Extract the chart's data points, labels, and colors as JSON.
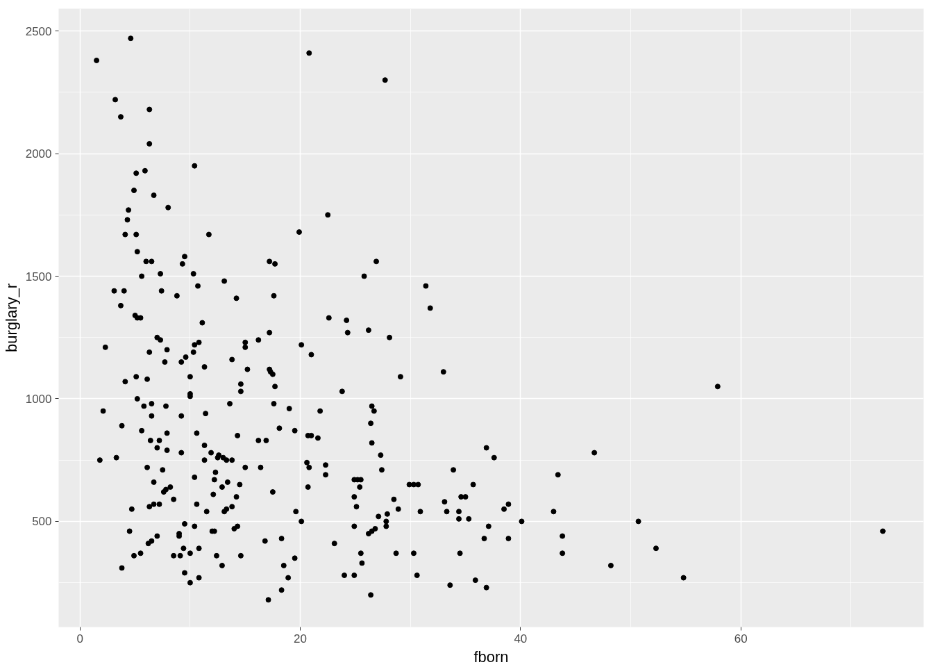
{
  "chart_data": {
    "type": "scatter",
    "xlabel": "fborn",
    "ylabel": "burglary_r",
    "xlim": [
      -1.94,
      76.6
    ],
    "ylim": [
      69,
      2591
    ],
    "xticks": [
      0,
      20,
      40,
      60
    ],
    "yticks": [
      500,
      1000,
      1500,
      2000,
      2500
    ],
    "grid": true,
    "marker": "circle",
    "series": [
      {
        "color": "#000000",
        "x": [
          1.5,
          4.6,
          20.8,
          27.7,
          3.2,
          3.7,
          6.3,
          6.3,
          10.4,
          5.9,
          5.1,
          6.7,
          4.9,
          4.4,
          8.0,
          4.3,
          4.1,
          5.1,
          11.7,
          19.9,
          22.5,
          5.2,
          9.5,
          6.0,
          6.5,
          9.3,
          10.3,
          5.6,
          7.3,
          13.1,
          10.7,
          17.2,
          17.7,
          26.9,
          25.8,
          31.4,
          31.8,
          3.1,
          4.0,
          7.4,
          14.2,
          17.6,
          8.8,
          3.7,
          5.0,
          5.5,
          5.2,
          11.1,
          22.6,
          24.2,
          24.3,
          26.2,
          28.1,
          17.2,
          16.2,
          15.0,
          15.0,
          7.0,
          7.3,
          10.4,
          10.8,
          10.3,
          2.3,
          6.3,
          7.9,
          20.1,
          21.0,
          9.6,
          9.2,
          7.7,
          11.3,
          13.8,
          15.2,
          17.2,
          17.3,
          17.5,
          33.0,
          29.1,
          5.1,
          4.1,
          6.1,
          10.0,
          14.6,
          14.6,
          17.7,
          23.8,
          57.9,
          10.0,
          10.0,
          5.2,
          2.1,
          5.8,
          6.5,
          7.8,
          11.4,
          13.6,
          17.6,
          19.0,
          21.8,
          26.5,
          26.7,
          6.5,
          9.2,
          1.8,
          3.8,
          5.6,
          7.9,
          10.6,
          14.3,
          18.1,
          19.5,
          20.7,
          21.0,
          21.6,
          26.4,
          16.2,
          16.9,
          6.4,
          7.2,
          26.5,
          11.3,
          7.0,
          7.9,
          11.9,
          9.2,
          12.6,
          13.0,
          27.3,
          12.5,
          13.3,
          13.8,
          11.3,
          36.9,
          37.6,
          46.7,
          43.4,
          33.9,
          27.4,
          16.4,
          15.0,
          20.6,
          20.8,
          22.3,
          22.3,
          6.1,
          7.5,
          10.4,
          12.3,
          12.2,
          13.4,
          14.5,
          24.9,
          25.2,
          25.5,
          25.4,
          20.7,
          17.5,
          7.8,
          8.2,
          7.6,
          12.9,
          6.7,
          29.9,
          30.3,
          30.7,
          35.7,
          33.1,
          34.6,
          35.0,
          33.3,
          34.4,
          34.4,
          35.3,
          30.9,
          28.5,
          28.9,
          27.1,
          27.9,
          27.8,
          27.8,
          24.9,
          25.1,
          8.5,
          12.1,
          14.2,
          13.8,
          13.1,
          13.3,
          10.6,
          11.5,
          6.7,
          6.3,
          7.2,
          4.7,
          19.6,
          38.5,
          38.9,
          43.0,
          40.1,
          50.7,
          37.1,
          36.7,
          38.9,
          43.8,
          43.8,
          52.3,
          72.9,
          48.2,
          54.8,
          20.1,
          24.9,
          26.8,
          26.5,
          26.2,
          25.5,
          25.6,
          24.9,
          24.0,
          23.1,
          28.7,
          30.3,
          30.6,
          34.5,
          35.9,
          33.6,
          36.9,
          26.4,
          12.0,
          12.2,
          10.4,
          9.5,
          10.8,
          10.0,
          9.1,
          8.5,
          9.0,
          9.0,
          9.4,
          9.5,
          10.0,
          10.8,
          4.5,
          7.0,
          6.2,
          6.5,
          4.9,
          5.5,
          3.8,
          3.3,
          12.9,
          12.4,
          14.0,
          14.3,
          14.6,
          16.8,
          18.3,
          18.5,
          18.9,
          18.3,
          17.1,
          19.5
        ],
        "values": [
          2380,
          2470,
          2410,
          2300,
          2220,
          2150,
          2180,
          2040,
          1950,
          1930,
          1920,
          1830,
          1850,
          1770,
          1780,
          1730,
          1670,
          1670,
          1670,
          1680,
          1750,
          1600,
          1580,
          1560,
          1560,
          1550,
          1510,
          1500,
          1510,
          1480,
          1460,
          1560,
          1550,
          1560,
          1500,
          1460,
          1370,
          1440,
          1440,
          1440,
          1410,
          1420,
          1420,
          1380,
          1340,
          1330,
          1330,
          1310,
          1330,
          1320,
          1270,
          1280,
          1250,
          1270,
          1240,
          1230,
          1210,
          1250,
          1240,
          1220,
          1230,
          1190,
          1210,
          1190,
          1200,
          1220,
          1180,
          1170,
          1150,
          1150,
          1130,
          1160,
          1120,
          1120,
          1110,
          1100,
          1110,
          1090,
          1090,
          1070,
          1080,
          1090,
          1060,
          1030,
          1050,
          1030,
          1050,
          1020,
          1010,
          1000,
          950,
          970,
          980,
          970,
          940,
          980,
          980,
          960,
          950,
          970,
          950,
          930,
          930,
          750,
          890,
          870,
          860,
          860,
          850,
          880,
          870,
          850,
          850,
          840,
          900,
          830,
          830,
          830,
          830,
          820,
          810,
          800,
          790,
          780,
          780,
          770,
          760,
          770,
          760,
          750,
          750,
          750,
          800,
          760,
          780,
          690,
          710,
          710,
          720,
          720,
          740,
          720,
          730,
          690,
          720,
          710,
          680,
          700,
          670,
          660,
          650,
          670,
          670,
          670,
          640,
          640,
          620,
          630,
          640,
          620,
          640,
          660,
          650,
          650,
          650,
          650,
          580,
          600,
          600,
          540,
          540,
          510,
          510,
          540,
          590,
          550,
          520,
          530,
          500,
          480,
          600,
          560,
          590,
          610,
          600,
          560,
          540,
          550,
          570,
          540,
          570,
          560,
          570,
          550,
          540,
          550,
          570,
          540,
          500,
          500,
          480,
          430,
          430,
          440,
          370,
          390,
          460,
          320,
          270,
          500,
          480,
          470,
          460,
          450,
          370,
          330,
          280,
          280,
          410,
          370,
          370,
          280,
          370,
          260,
          240,
          230,
          200,
          460,
          460,
          480,
          490,
          390,
          370,
          360,
          360,
          450,
          440,
          390,
          290,
          250,
          270,
          460,
          440,
          410,
          420,
          360,
          370,
          310,
          760,
          320,
          360,
          470,
          480,
          360,
          420,
          430,
          320,
          270,
          220,
          180,
          350
        ]
      }
    ]
  }
}
